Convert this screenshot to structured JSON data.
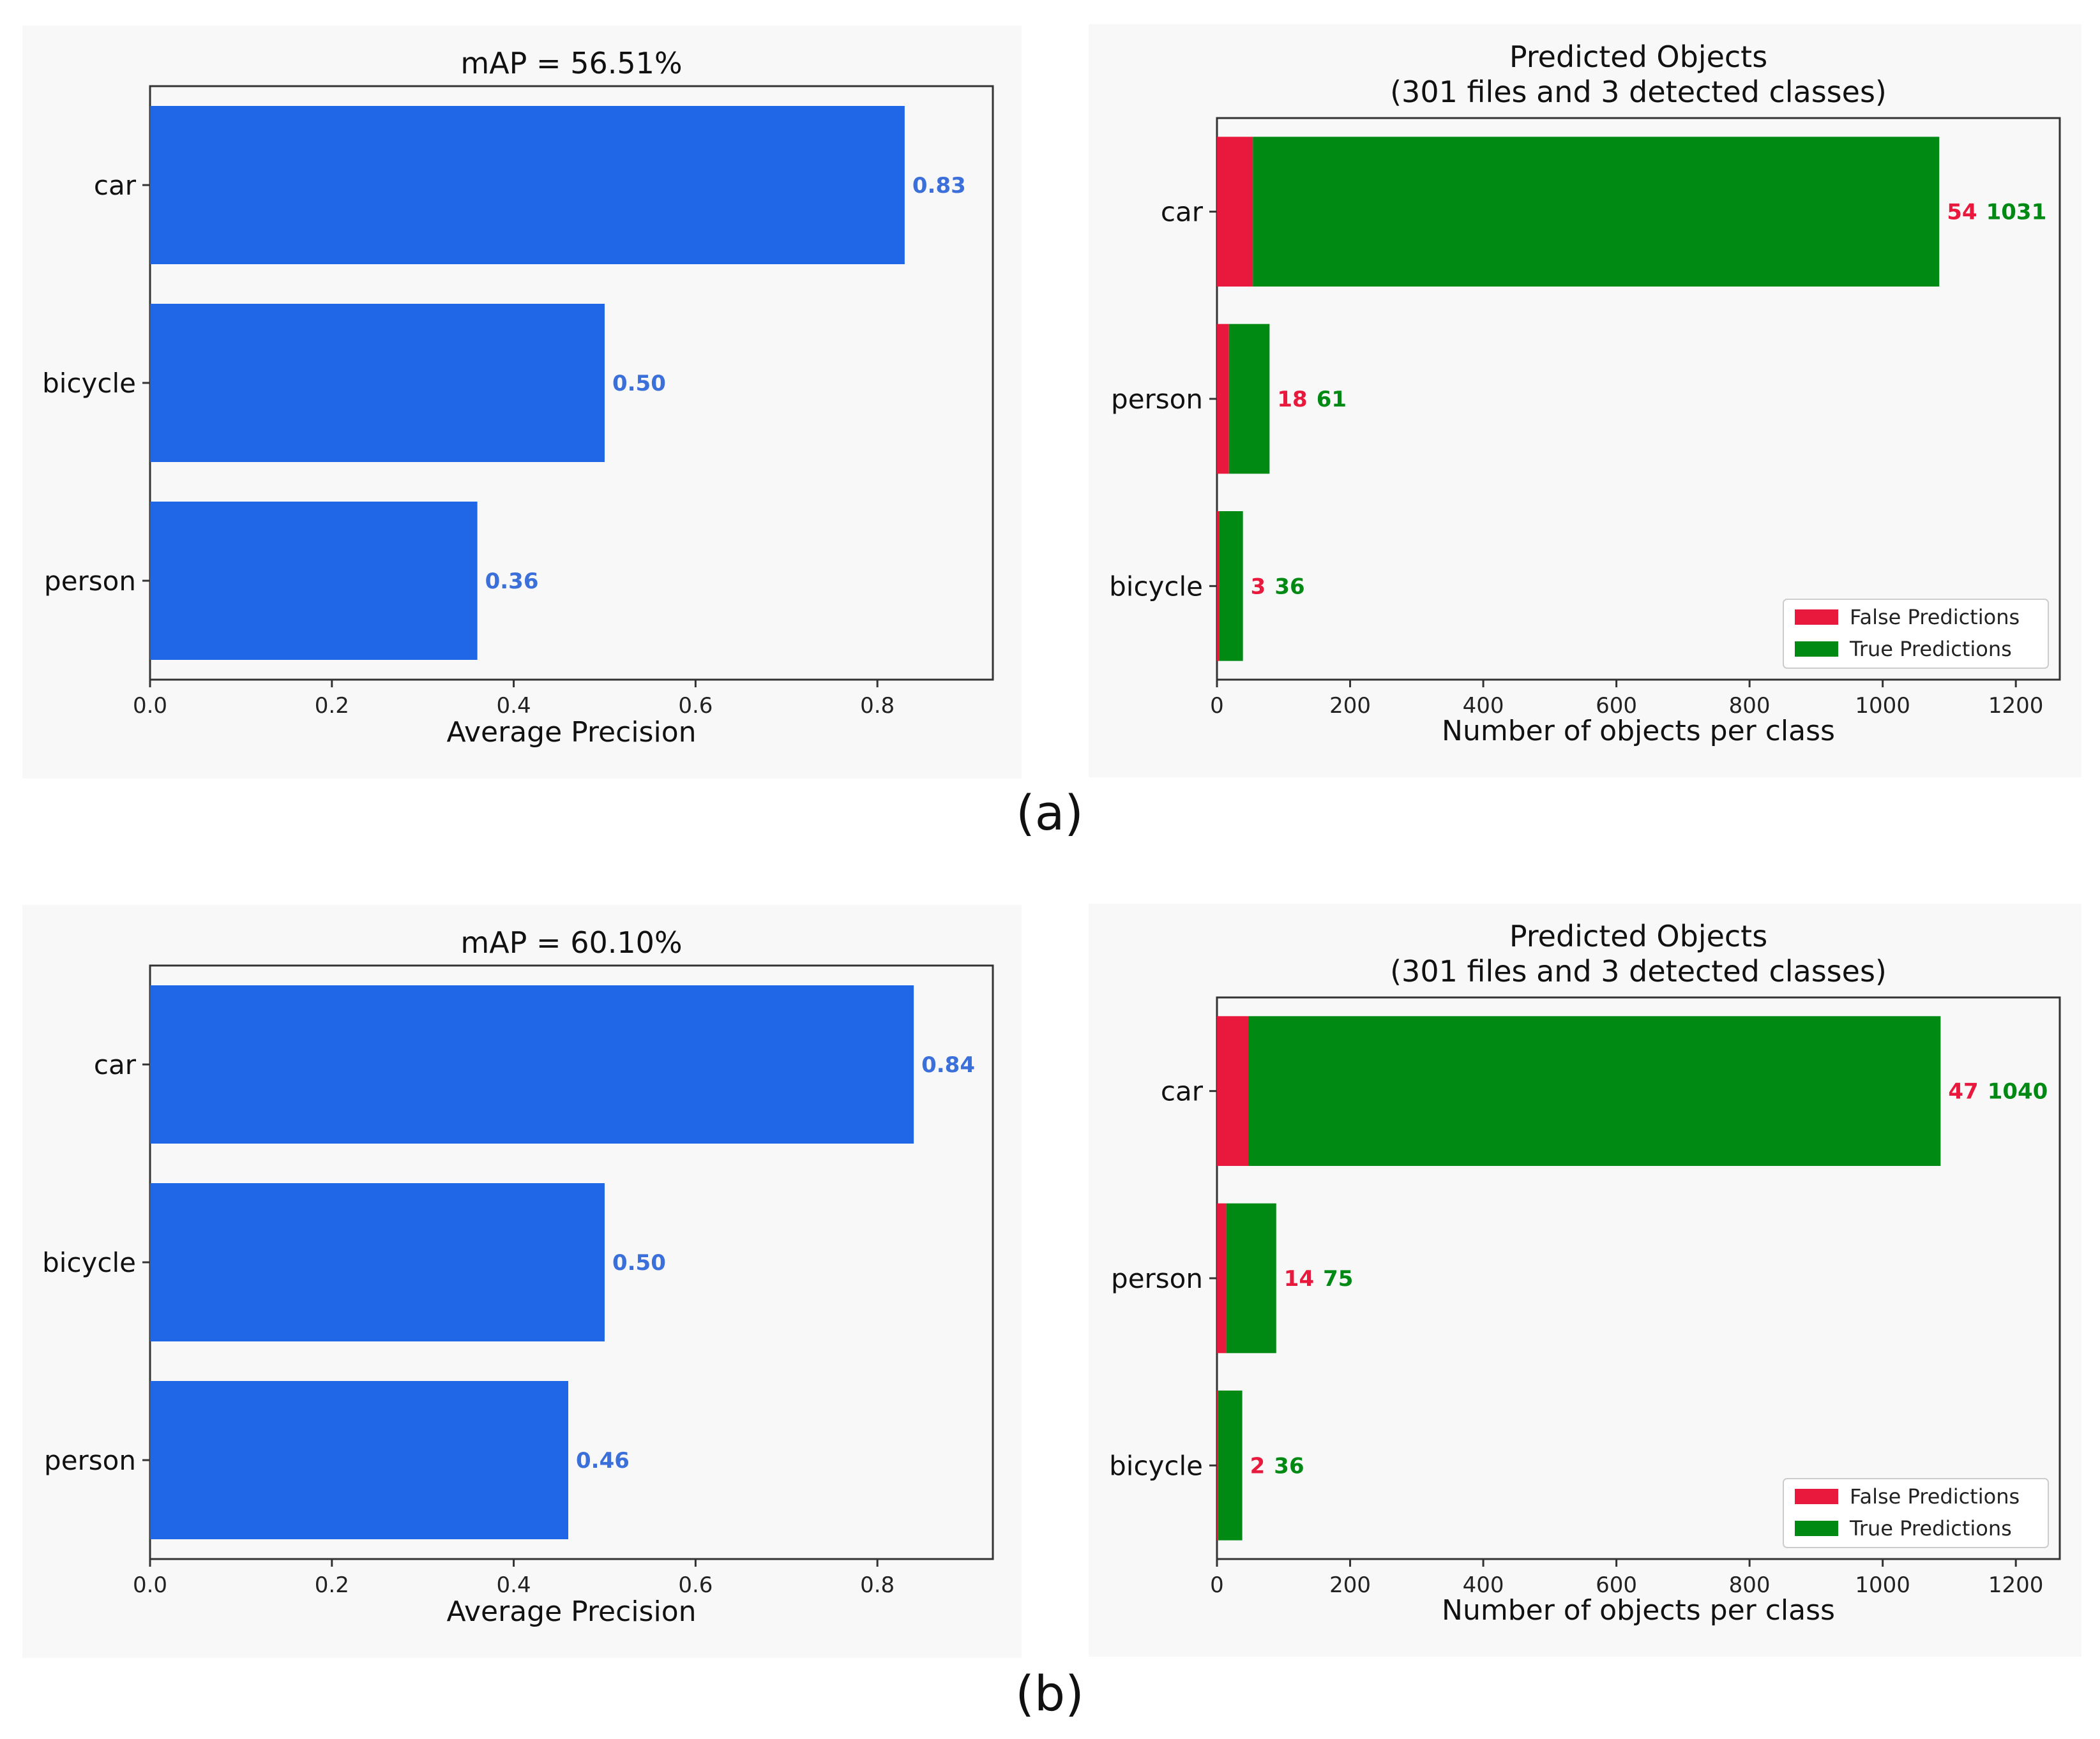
{
  "panel_labels": [
    "(a)",
    "(b)"
  ],
  "colors": {
    "ap_bar": "#1f67e6",
    "ap_label": "#3b6fd9",
    "false_pred": "#e8193c",
    "true_pred": "#008a14",
    "panel_bg": "#f8f8f8",
    "axes_bg": "#f8f8f8"
  },
  "chart_data": [
    {
      "type": "bar",
      "orientation": "horizontal",
      "title": "mAP = 56.51%",
      "xlabel": "Average Precision",
      "categories": [
        "car",
        "bicycle",
        "person"
      ],
      "values": [
        0.83,
        0.5,
        0.36
      ],
      "value_labels": [
        "0.83",
        "0.50",
        "0.36"
      ],
      "xlim": [
        0,
        0.927
      ],
      "xticks": [
        "0.0",
        "0.2",
        "0.4",
        "0.6",
        "0.8"
      ],
      "grid": false
    },
    {
      "type": "bar",
      "orientation": "horizontal",
      "stacked": true,
      "title": "Predicted Objects",
      "subtitle": "(301 files and 3 detected classes)",
      "xlabel": "Number of objects per class",
      "categories": [
        "car",
        "person",
        "bicycle"
      ],
      "series": [
        {
          "name": "False Predictions",
          "values": [
            54,
            18,
            3
          ]
        },
        {
          "name": "True Predictions",
          "values": [
            1031,
            61,
            36
          ]
        }
      ],
      "xlim": [
        0,
        1266
      ],
      "xticks": [
        "0",
        "200",
        "400",
        "600",
        "800",
        "1000",
        "1200"
      ],
      "legend": "lower-right",
      "grid": false
    },
    {
      "type": "bar",
      "orientation": "horizontal",
      "title": "mAP = 60.10%",
      "xlabel": "Average Precision",
      "categories": [
        "car",
        "bicycle",
        "person"
      ],
      "values": [
        0.84,
        0.5,
        0.46
      ],
      "value_labels": [
        "0.84",
        "0.50",
        "0.46"
      ],
      "xlim": [
        0,
        0.927
      ],
      "xticks": [
        "0.0",
        "0.2",
        "0.4",
        "0.6",
        "0.8"
      ],
      "grid": false
    },
    {
      "type": "bar",
      "orientation": "horizontal",
      "stacked": true,
      "title": "Predicted Objects",
      "subtitle": "(301 files and 3 detected classes)",
      "xlabel": "Number of objects per class",
      "categories": [
        "car",
        "person",
        "bicycle"
      ],
      "series": [
        {
          "name": "False Predictions",
          "values": [
            47,
            14,
            2
          ]
        },
        {
          "name": "True Predictions",
          "values": [
            1040,
            75,
            36
          ]
        }
      ],
      "xlim": [
        0,
        1266
      ],
      "xticks": [
        "0",
        "200",
        "400",
        "600",
        "800",
        "1000",
        "1200"
      ],
      "legend": "lower-right",
      "grid": false
    }
  ]
}
